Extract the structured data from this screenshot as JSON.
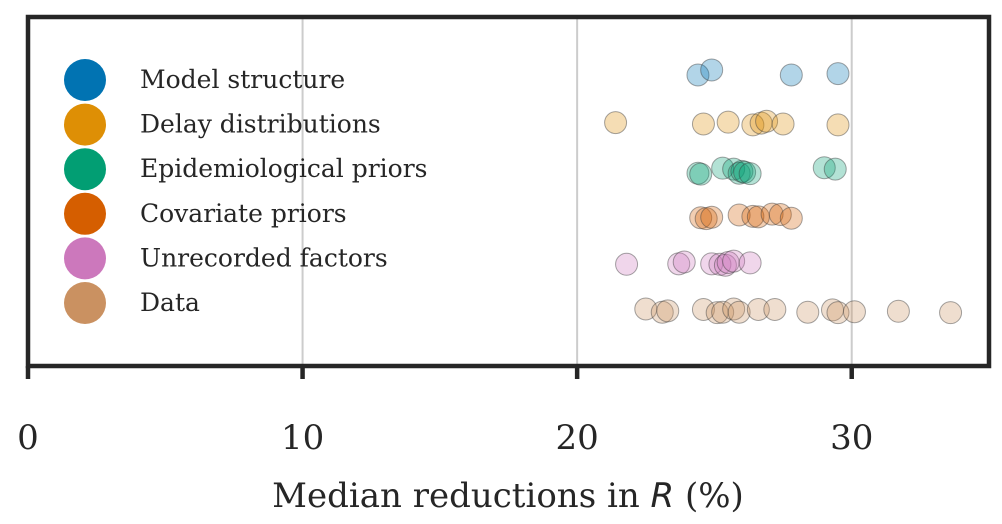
{
  "chart_data": {
    "type": "scatter",
    "xlabel_prefix": "Median reductions in ",
    "xlabel_var": "R",
    "xlabel_suffix": " (%)",
    "xlim": [
      0,
      35
    ],
    "xticks": [
      0,
      10,
      20,
      30
    ],
    "grid": "vertical",
    "legend_placement": "top-left",
    "series": [
      {
        "name": "Model structure",
        "color": "#0173b2",
        "points": [
          [
            24.4,
            0.0
          ],
          [
            24.9,
            -0.11
          ],
          [
            27.8,
            0.0
          ],
          [
            29.5,
            -0.03
          ]
        ]
      },
      {
        "name": "Delay distributions",
        "color": "#de8f05",
        "points": [
          [
            21.4,
            -0.03
          ],
          [
            24.6,
            0.0
          ],
          [
            25.5,
            -0.04
          ],
          [
            26.4,
            0.02
          ],
          [
            26.7,
            -0.02
          ],
          [
            26.9,
            -0.06
          ],
          [
            27.5,
            0.0
          ],
          [
            29.5,
            0.02
          ]
        ]
      },
      {
        "name": "Epidemiological priors",
        "color": "#029e73",
        "points": [
          [
            24.4,
            0.07
          ],
          [
            24.5,
            0.09
          ],
          [
            25.3,
            -0.04
          ],
          [
            25.7,
            -0.02
          ],
          [
            25.9,
            0.07
          ],
          [
            26.0,
            0.03
          ],
          [
            26.1,
            0.05
          ],
          [
            26.3,
            0.08
          ],
          [
            29.0,
            -0.05
          ],
          [
            29.4,
            -0.02
          ]
        ]
      },
      {
        "name": "Covariate priors",
        "color": "#d55e00",
        "points": [
          [
            24.5,
            0.06
          ],
          [
            24.7,
            0.08
          ],
          [
            24.9,
            0.05
          ],
          [
            25.9,
            0.0
          ],
          [
            26.4,
            0.03
          ],
          [
            26.6,
            0.04
          ],
          [
            27.1,
            -0.02
          ],
          [
            27.4,
            -0.01
          ],
          [
            27.8,
            0.07
          ]
        ]
      },
      {
        "name": "Unrecorded factors",
        "color": "#cc78bc",
        "points": [
          [
            21.8,
            0.05
          ],
          [
            23.7,
            0.04
          ],
          [
            23.9,
            0.0
          ],
          [
            24.9,
            0.04
          ],
          [
            25.2,
            0.05
          ],
          [
            25.4,
            0.07
          ],
          [
            25.5,
            0.01
          ],
          [
            25.7,
            -0.02
          ],
          [
            26.3,
            0.02
          ]
        ]
      },
      {
        "name": "Data",
        "color": "#ca9161",
        "points": [
          [
            22.5,
            0.0
          ],
          [
            23.1,
            0.07
          ],
          [
            23.3,
            0.04
          ],
          [
            24.6,
            0.01
          ],
          [
            25.1,
            0.08
          ],
          [
            25.3,
            0.07
          ],
          [
            25.7,
            0.0
          ],
          [
            25.9,
            0.07
          ],
          [
            26.6,
            0.01
          ],
          [
            27.2,
            0.01
          ],
          [
            28.4,
            0.07
          ],
          [
            29.3,
            0.02
          ],
          [
            29.5,
            0.08
          ],
          [
            30.1,
            0.06
          ],
          [
            31.7,
            0.05
          ],
          [
            33.6,
            0.08
          ]
        ]
      }
    ]
  }
}
